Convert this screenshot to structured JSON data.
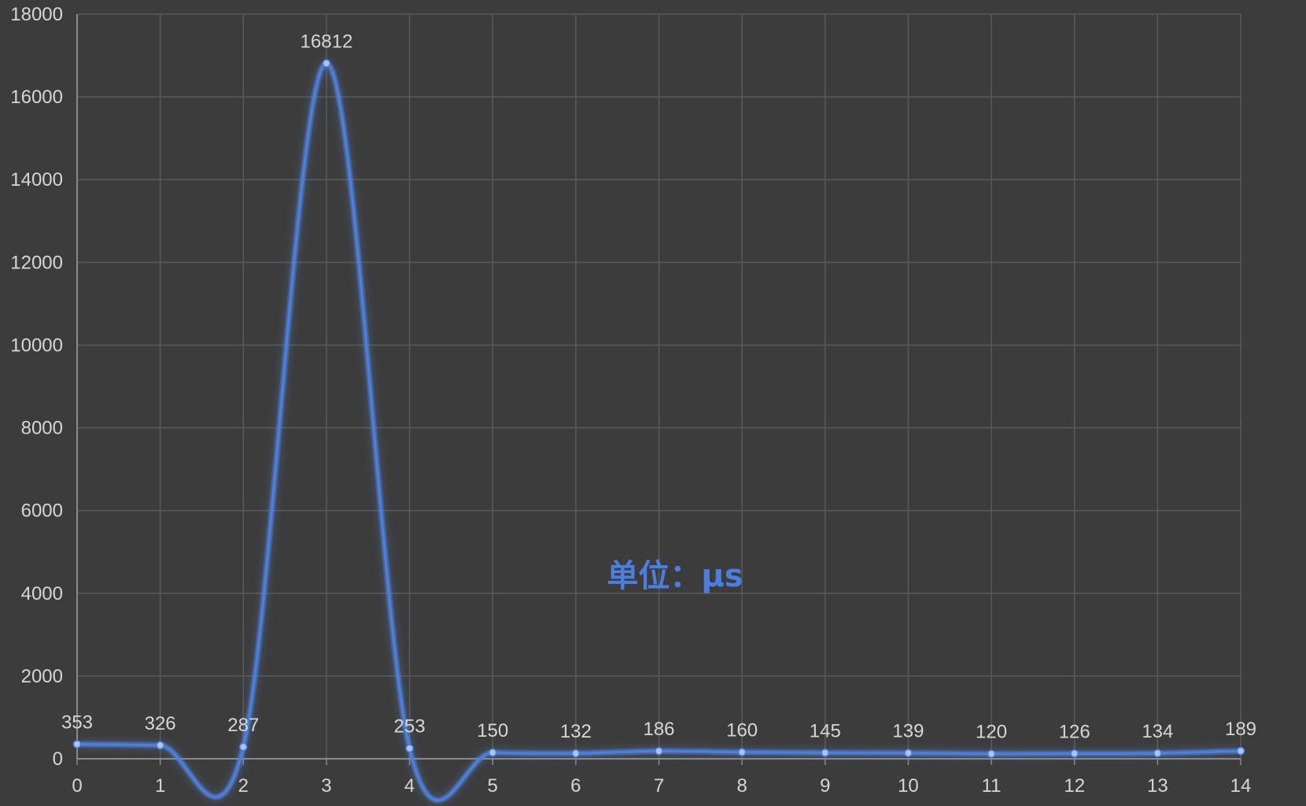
{
  "chart_data": {
    "type": "line",
    "smooth": true,
    "x": [
      0,
      1,
      2,
      3,
      4,
      5,
      6,
      7,
      8,
      9,
      10,
      11,
      12,
      13,
      14
    ],
    "series": [
      {
        "values": [
          353,
          326,
          287,
          16812,
          253,
          150,
          132,
          186,
          160,
          145,
          139,
          120,
          126,
          134,
          189
        ]
      }
    ],
    "x_ticks": [
      "0",
      "1",
      "2",
      "3",
      "4",
      "5",
      "6",
      "7",
      "8",
      "9",
      "10",
      "11",
      "12",
      "13",
      "14"
    ],
    "y_ticks": [
      "0",
      "2000",
      "4000",
      "6000",
      "8000",
      "10000",
      "12000",
      "14000",
      "16000",
      "18000"
    ],
    "xlim": [
      0,
      14
    ],
    "ylim": [
      0,
      18000
    ],
    "grid": true,
    "data_labels": true,
    "annotation": "单位：μs",
    "colors": {
      "background": "#3c3c3c",
      "grid": "#5a5a5a",
      "axis": "#8a8a8a",
      "line": "#4a7fe0",
      "glow": "#5b8ff0",
      "point": "#a9c4f7",
      "text": "#d6d6d6",
      "annotation": "#4a7fe0"
    }
  }
}
